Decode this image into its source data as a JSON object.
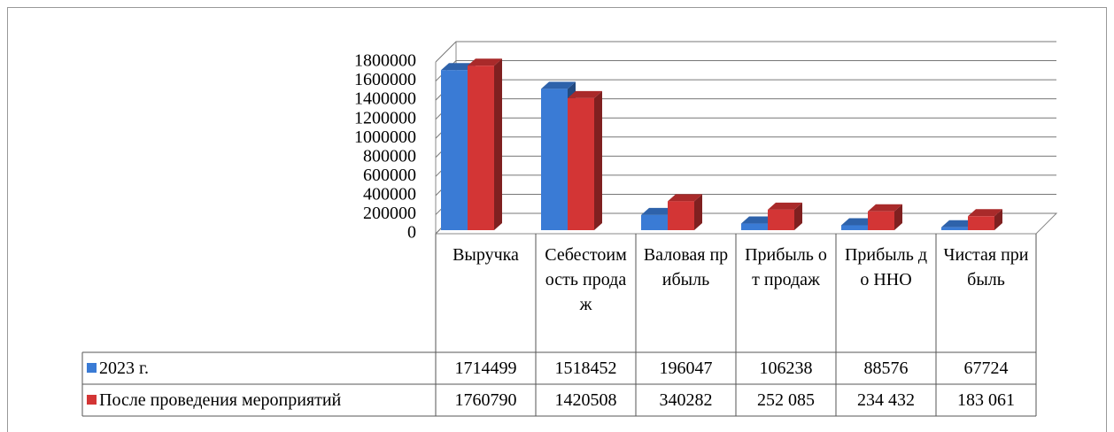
{
  "chart_data": {
    "type": "bar3d",
    "categories": [
      "Выручка",
      "Себестоимость продаж",
      "Валовая прибыль",
      "Прибыль от продаж",
      "Прибыль до ННО",
      "Чистая прибыль"
    ],
    "series": [
      {
        "name": "2023 г.",
        "color": "#3a7bd5",
        "values": [
          1714499,
          1518452,
          196047,
          106238,
          88576,
          67724
        ]
      },
      {
        "name": "После проведения мероприятий",
        "color": "#d33535",
        "values": [
          1760790,
          1420508,
          340282,
          252085,
          234432,
          183061
        ],
        "value_labels": [
          "1760790",
          "1420508",
          "340282",
          "252 085",
          "234 432",
          "183 061"
        ]
      }
    ],
    "ylim": [
      0,
      1800000
    ],
    "yticks": [
      0,
      200000,
      400000,
      600000,
      800000,
      1000000,
      1200000,
      1400000,
      1600000,
      1800000
    ],
    "grid": true
  }
}
